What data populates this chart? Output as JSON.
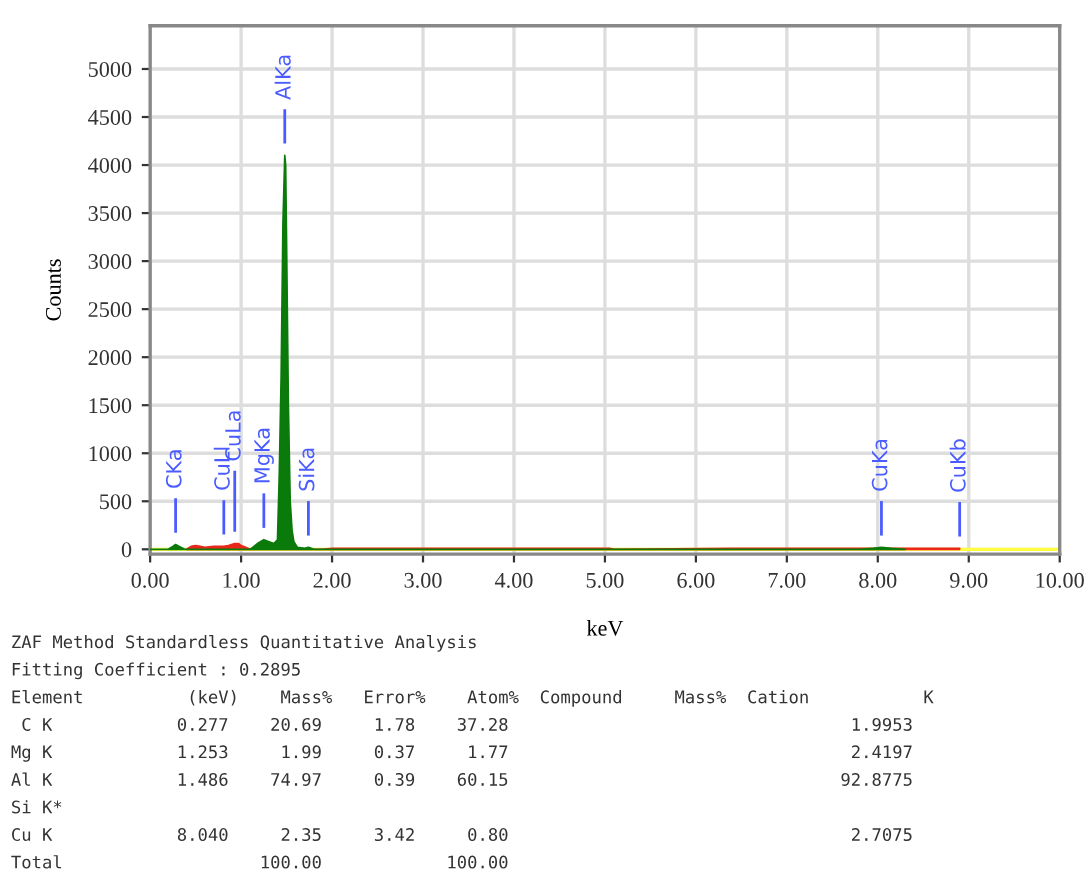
{
  "chart_data": {
    "type": "area",
    "xlabel": "keV",
    "ylabel": "Counts",
    "xlim": [
      0,
      10
    ],
    "ylim": [
      -50,
      5450
    ],
    "xticks": [
      {
        "value": 0,
        "label": "0.00"
      },
      {
        "value": 1,
        "label": "1.00"
      },
      {
        "value": 2,
        "label": "2.00"
      },
      {
        "value": 3,
        "label": "3.00"
      },
      {
        "value": 4,
        "label": "4.00"
      },
      {
        "value": 5,
        "label": "5.00"
      },
      {
        "value": 6,
        "label": "6.00"
      },
      {
        "value": 7,
        "label": "7.00"
      },
      {
        "value": 8,
        "label": "8.00"
      },
      {
        "value": 9,
        "label": "9.00"
      },
      {
        "value": 10,
        "label": "10.00"
      }
    ],
    "yticks": [
      0,
      500,
      1000,
      1500,
      2000,
      2500,
      3000,
      3500,
      4000,
      4500,
      5000
    ],
    "grid": true,
    "series": [
      {
        "color": "#e8281a",
        "x": [
          0.4,
          0.45,
          0.5,
          0.55,
          0.6,
          0.7,
          0.81,
          0.86,
          0.93,
          0.97,
          1.0,
          1.05,
          1.1,
          1.9,
          2.0,
          3.0,
          4.0,
          5.05,
          5.1,
          6.4,
          7.4,
          8.8,
          8.9
        ],
        "values": [
          0,
          30,
          40,
          30,
          20,
          30,
          30,
          40,
          60,
          60,
          40,
          20,
          0,
          0,
          10,
          10,
          10,
          10,
          0,
          10,
          10,
          10,
          10
        ]
      },
      {
        "color": "#0a7a0a",
        "x": [
          0.0,
          0.2,
          0.25,
          0.28,
          0.32,
          0.38,
          1.1,
          1.18,
          1.25,
          1.3,
          1.36,
          1.4,
          1.42,
          1.44,
          1.46,
          1.48,
          1.49,
          1.5,
          1.52,
          1.54,
          1.56,
          1.58,
          1.62,
          1.7,
          1.74,
          1.8,
          7.8,
          7.95,
          8.04,
          8.15,
          8.3
        ],
        "values": [
          0,
          0,
          30,
          50,
          30,
          0,
          0,
          60,
          100,
          80,
          60,
          100,
          800,
          1800,
          3400,
          4100,
          4000,
          3200,
          1500,
          500,
          200,
          80,
          20,
          10,
          20,
          0,
          0,
          10,
          20,
          10,
          0
        ]
      }
    ],
    "annotations": [
      {
        "text": "CKa",
        "x": 0.28,
        "y": 50
      },
      {
        "text": "CuLl",
        "x": 0.81,
        "y": 30
      },
      {
        "text": "CuLa",
        "x": 0.93,
        "y": 60
      },
      {
        "text": "MgKa",
        "x": 1.25,
        "y": 100
      },
      {
        "text": "AlKa",
        "x": 1.48,
        "y": 4100
      },
      {
        "text": "SiKa",
        "x": 1.74,
        "y": 20
      },
      {
        "text": "CuKa",
        "x": 8.04,
        "y": 20
      },
      {
        "text": "CuKb",
        "x": 8.9,
        "y": 10
      },
      "ZAF Method Standardless Quantitative Analysis",
      "Fitting Coefficient : 0.2895",
      "Element          (keV)    Mass%   Error%    Atom%  Compound     Mass%  Cation           K",
      " C K            0.277    20.69     1.78    37.28                                 1.9953",
      "Mg K            1.253     1.99     0.37     1.77                                 2.4197",
      "Al K            1.486    74.97     0.39    60.15                                92.8775",
      "Si K*",
      "Cu K            8.040     2.35     3.42     0.80                                 2.7075",
      "Total                   100.00            100.00"
    ]
  }
}
